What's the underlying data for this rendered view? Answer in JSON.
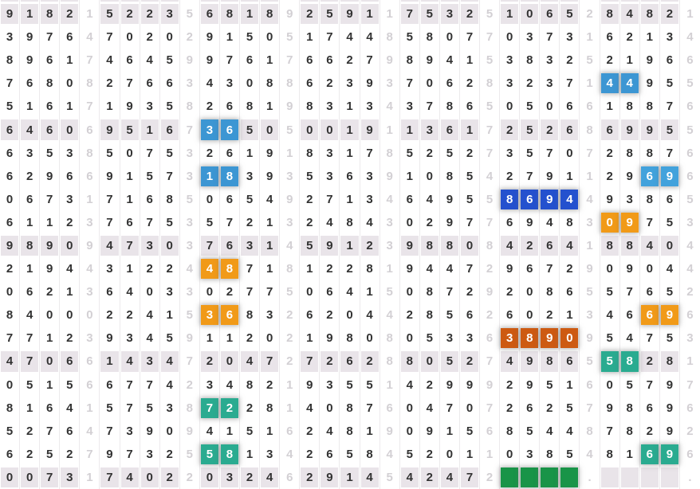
{
  "palette": {
    "cell_bg": "#ffffff",
    "stripe_bg": "#e9e4e9",
    "digit": "#333333",
    "faded_digit": "#d3d0d4",
    "grid_line": "#eceaec",
    "highlight_text": "#ffffff",
    "blue": "#3c96d3",
    "blue_light": "#42a2dc",
    "blue_dark": "#2451ce",
    "orange": "#f19a18",
    "orange_dark": "#cd5a12",
    "teal": "#2aab90",
    "green": "#199448"
  },
  "chart_data": {
    "type": "table",
    "columns": 35,
    "separator_columns": [
      4,
      9,
      14,
      19,
      24,
      29,
      34
    ],
    "stripe_rows": [
      0,
      5,
      10,
      15,
      20
    ],
    "rows": [
      {
        "cells": "91821522356818925911753251065284821",
        "highlights": []
      },
      {
        "cells": "39764702029150517448580770373162134",
        "highlights": []
      },
      {
        "cells": "89617464599761766279894153832521966",
        "highlights": []
      },
      {
        "cells": "76808276634308862393706283237144955",
        "highlights": [
          {
            "from": 30,
            "to": 31,
            "color": "blue"
          }
        ]
      },
      {
        "cells": "51617193582681983134378650506618876",
        "highlights": []
      },
      {
        "cells": "64606951673650500191136172526869955",
        "highlights": [
          {
            "from": 10,
            "to": 11,
            "color": "blue"
          }
        ]
      },
      {
        "cells": "63538507532619183178525273570728876",
        "highlights": []
      },
      {
        "cells": "62966915731839353639108542791129696",
        "highlights": [
          {
            "from": 10,
            "to": 11,
            "color": "blue"
          },
          {
            "from": 32,
            "to": 33,
            "color": "blue_light"
          }
        ]
      },
      {
        "cells": "06731716850654927134649558694493865",
        "highlights": [
          {
            "from": 25,
            "to": 28,
            "color": "blue_dark"
          }
        ]
      },
      {
        "cells": "61123767535721324843029776948309753",
        "highlights": [
          {
            "from": 30,
            "to": 31,
            "color": "orange"
          }
        ]
      },
      {
        "cells": "98909473037631459123988084264188404",
        "highlights": []
      },
      {
        "cells": "21944312244871812281944729672909044",
        "highlights": [
          {
            "from": 10,
            "to": 11,
            "color": "orange"
          }
        ]
      },
      {
        "cells": "06213640330277506415087292086557652",
        "highlights": []
      },
      {
        "cells": "84000224153683262044285626021346696",
        "highlights": [
          {
            "from": 10,
            "to": 11,
            "color": "orange"
          },
          {
            "from": 32,
            "to": 33,
            "color": "orange"
          }
        ]
      },
      {
        "cells": "77123934591120219808053363890954753",
        "highlights": [
          {
            "from": 25,
            "to": 28,
            "color": "orange_dark"
          }
        ]
      },
      {
        "cells": "47066143472047272628805274986558281",
        "highlights": [
          {
            "from": 30,
            "to": 31,
            "color": "teal"
          }
        ]
      },
      {
        "cells": "05156677423482193551429992951605797",
        "highlights": []
      },
      {
        "cells": "81641575387228140876047072625798696",
        "highlights": [
          {
            "from": 10,
            "to": 11,
            "color": "teal"
          }
        ]
      },
      {
        "cells": "52764739094151624819091568544878292",
        "highlights": []
      },
      {
        "cells": "62527973255813426584520110385481696",
        "highlights": [
          {
            "from": 10,
            "to": 11,
            "color": "teal"
          },
          {
            "from": 32,
            "to": 33,
            "color": "teal"
          }
        ]
      },
      {
        "cells": "0073174022032462914542472____.____.",
        "highlights": [
          {
            "from": 25,
            "to": 28,
            "color": "green"
          }
        ]
      }
    ]
  }
}
